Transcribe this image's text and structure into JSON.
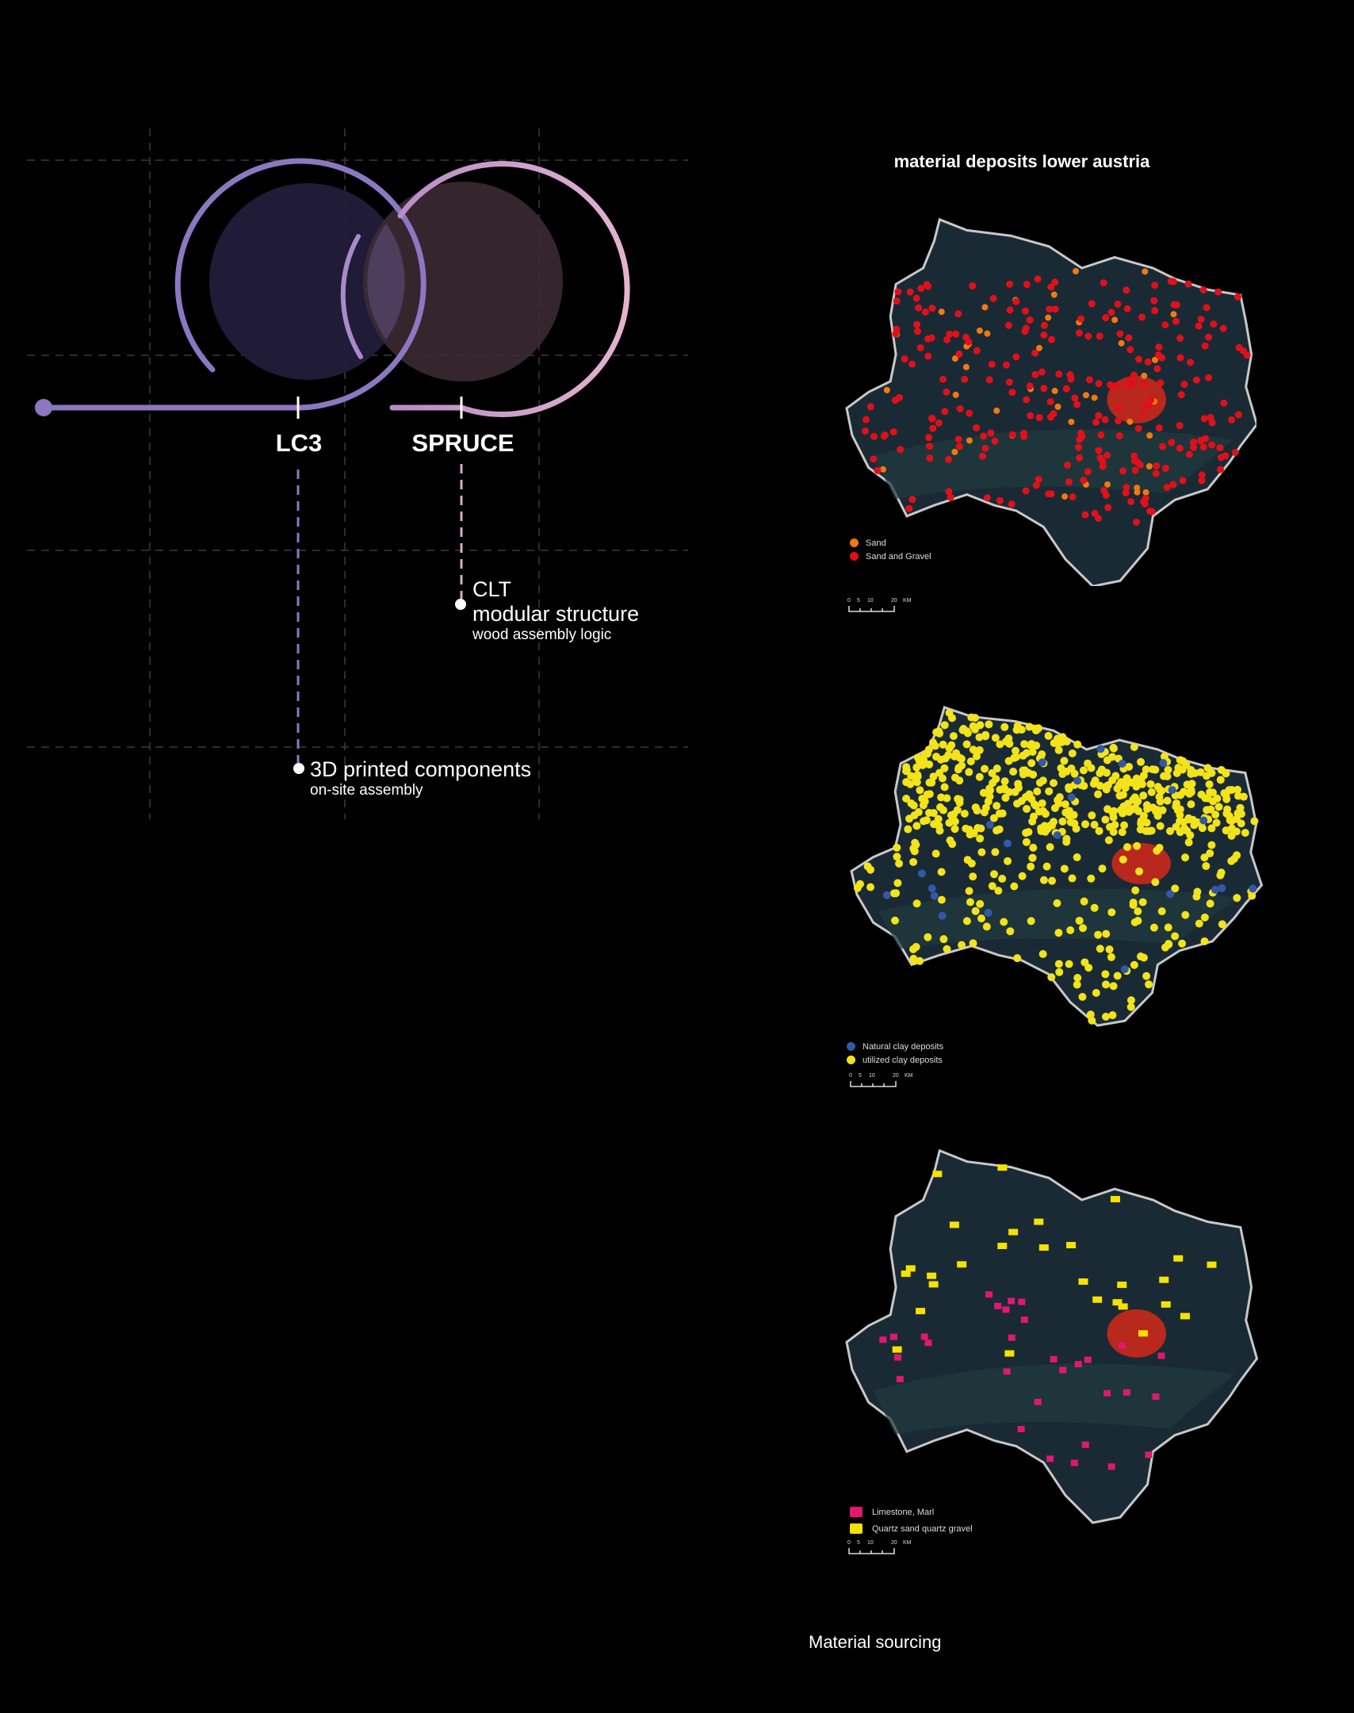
{
  "diagram": {
    "node_lc3": "LC3",
    "node_spruce": "SPRUCE",
    "spruce_output": {
      "title": "CLT",
      "subtitle": "modular structure",
      "note": "wood assembly logic"
    },
    "lc3_output": {
      "title": "3D printed components",
      "note": "on-site assembly"
    },
    "colors": {
      "lc3": "#8b78c0",
      "spruce": "#d9a9c9",
      "lc3_fill": "#221c3a",
      "spruce_fill": "#3e2b35"
    }
  },
  "maps": {
    "title": "material deposits lower austria",
    "map1": {
      "legend": [
        {
          "label": "Sand",
          "color": "#f07a10"
        },
        {
          "label": "Sand and Gravel",
          "color": "#e0101a"
        }
      ]
    },
    "map2": {
      "legend": [
        {
          "label": "Natural clay deposits",
          "color": "#3358a8"
        },
        {
          "label": "utilized clay deposits",
          "color": "#f2e31a"
        }
      ]
    },
    "map3": {
      "legend": [
        {
          "label": "Limestone, Marl",
          "color": "#e0186e"
        },
        {
          "label": "Quartz sand quartz gravel",
          "color": "#f5e200"
        }
      ]
    },
    "scale": {
      "ticks": [
        "0",
        "5",
        "10",
        "20"
      ],
      "unit": "KM"
    }
  },
  "footer": {
    "caption": "Material sourcing"
  }
}
